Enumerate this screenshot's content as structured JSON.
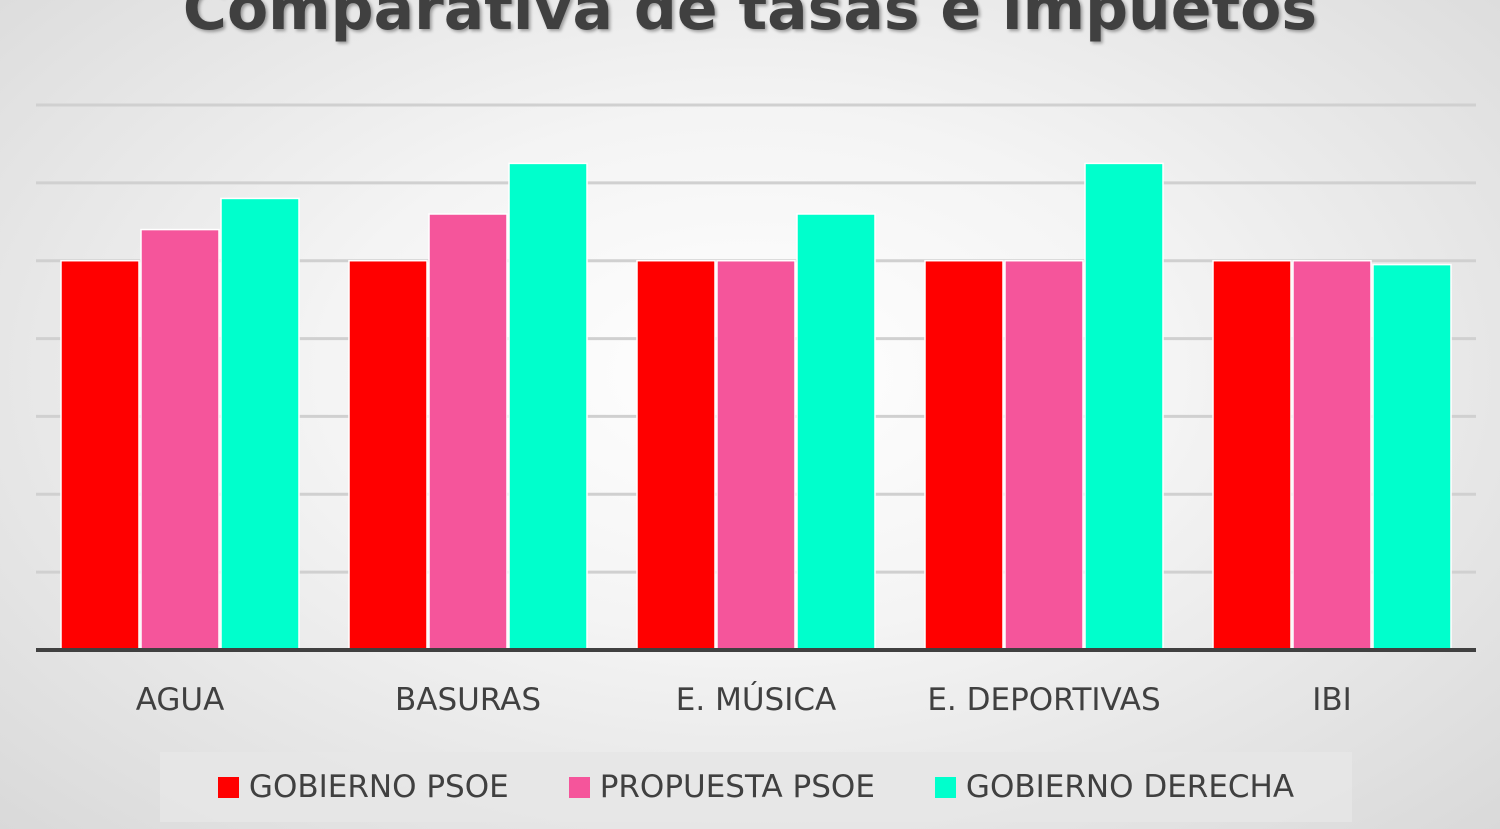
{
  "chart_data": {
    "type": "bar",
    "title": "Comparativa de tasas e impuetos",
    "xlabel": "",
    "ylabel": "",
    "categories": [
      "AGUA",
      "BASURAS",
      "E. MÚSICA",
      "E. DEPORTIVAS",
      "IBI"
    ],
    "series": [
      {
        "name": "GOBIERNO PSOE",
        "color": "#ff0000",
        "values": [
          5,
          5,
          5,
          5,
          5
        ]
      },
      {
        "name": "PROPUESTA PSOE",
        "color": "#f5559b",
        "values": [
          5.4,
          5.6,
          5,
          5,
          5
        ]
      },
      {
        "name": "GOBIERNO DERECHA",
        "color": "#00ffcc",
        "values": [
          5.8,
          6.25,
          5.6,
          6.25,
          4.95
        ]
      }
    ],
    "ylim": [
      0,
      7
    ],
    "grid": true,
    "legend_position": "bottom"
  }
}
